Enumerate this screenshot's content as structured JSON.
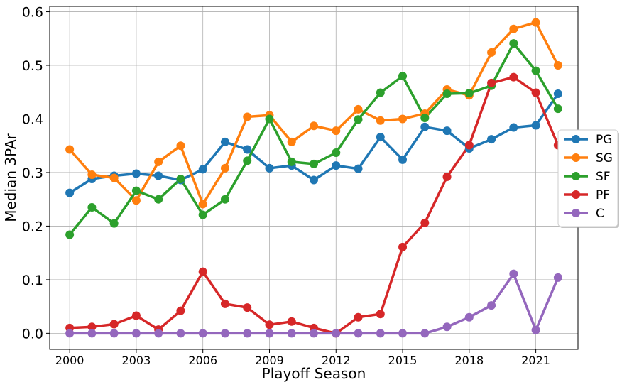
{
  "chart_data": {
    "type": "line",
    "title": "",
    "xlabel": "Playoff Season",
    "ylabel": "Median 3PAr",
    "x": [
      2000,
      2001,
      2002,
      2003,
      2004,
      2005,
      2006,
      2007,
      2008,
      2009,
      2010,
      2011,
      2012,
      2013,
      2014,
      2015,
      2016,
      2017,
      2018,
      2019,
      2020,
      2021,
      2022
    ],
    "xlim": [
      1999.1,
      2022.9
    ],
    "ylim": [
      -0.03,
      0.61
    ],
    "x_ticks": [
      2000,
      2003,
      2006,
      2009,
      2012,
      2015,
      2018,
      2021
    ],
    "x_tick_labels": [
      "2000",
      "2003",
      "2006",
      "2009",
      "2012",
      "2015",
      "2018",
      "2021"
    ],
    "y_ticks": [
      0.0,
      0.1,
      0.2,
      0.3,
      0.4,
      0.5,
      0.6
    ],
    "y_tick_labels": [
      "0.0",
      "0.1",
      "0.2",
      "0.3",
      "0.4",
      "0.5",
      "0.6"
    ],
    "grid": true,
    "legend_position": "center-right",
    "series": [
      {
        "name": "PG",
        "color": "#1f77b4",
        "values": [
          0.262,
          0.288,
          0.294,
          0.298,
          0.294,
          0.286,
          0.306,
          0.357,
          0.343,
          0.308,
          0.313,
          0.286,
          0.313,
          0.307,
          0.366,
          0.324,
          0.385,
          0.378,
          0.345,
          0.362,
          0.384,
          0.388,
          0.447
        ]
      },
      {
        "name": "SG",
        "color": "#ff7f0e",
        "values": [
          0.343,
          0.296,
          0.29,
          0.248,
          0.32,
          0.35,
          0.241,
          0.308,
          0.404,
          0.407,
          0.357,
          0.387,
          0.378,
          0.418,
          0.397,
          0.4,
          0.41,
          0.455,
          0.444,
          0.524,
          0.568,
          0.58,
          0.5
        ]
      },
      {
        "name": "SF",
        "color": "#2ca02c",
        "values": [
          0.184,
          0.235,
          0.205,
          0.266,
          0.25,
          0.288,
          0.221,
          0.25,
          0.322,
          0.4,
          0.32,
          0.316,
          0.337,
          0.399,
          0.449,
          0.48,
          0.402,
          0.447,
          0.448,
          0.462,
          0.541,
          0.49,
          0.419
        ]
      },
      {
        "name": "PF",
        "color": "#d62728",
        "values": [
          0.01,
          0.012,
          0.017,
          0.033,
          0.007,
          0.042,
          0.115,
          0.055,
          0.048,
          0.016,
          0.022,
          0.01,
          0.0,
          0.03,
          0.036,
          0.161,
          0.206,
          0.292,
          0.351,
          0.467,
          0.478,
          0.449,
          0.351
        ]
      },
      {
        "name": "C",
        "color": "#9467bd",
        "values": [
          0.0,
          0.0,
          0.0,
          0.0,
          0.0,
          0.0,
          0.0,
          0.0,
          0.0,
          0.0,
          0.0,
          0.0,
          0.0,
          0.0,
          0.0,
          0.0,
          0.0,
          0.012,
          0.03,
          0.052,
          0.111,
          0.006,
          0.104
        ]
      }
    ]
  }
}
